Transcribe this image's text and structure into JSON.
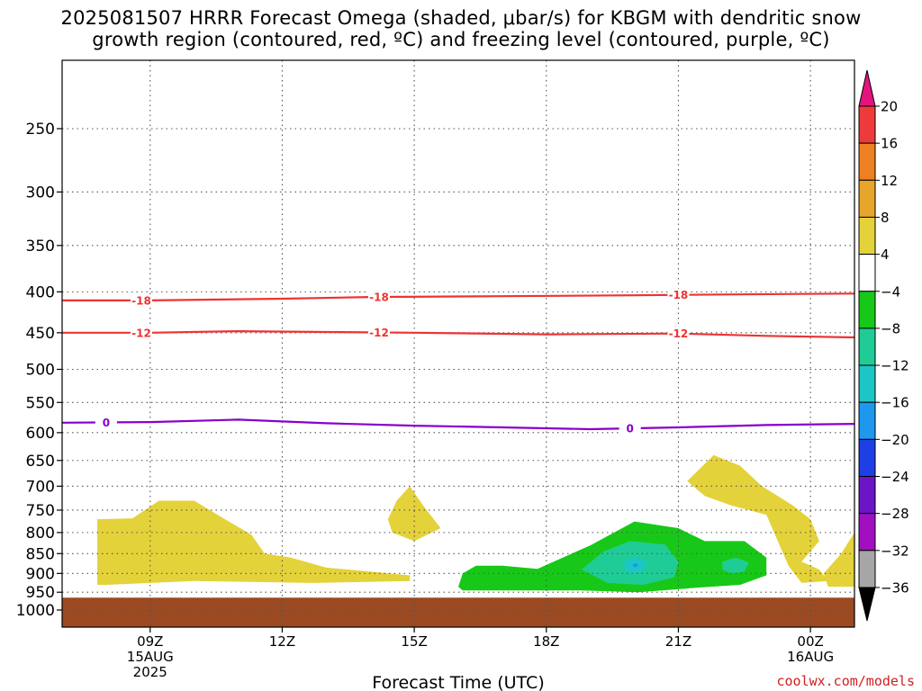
{
  "title": {
    "line1": "2025081507 HRRR Forecast Omega (shaded, μbar/s) for KBGM with dendritic snow",
    "line2": "growth region (contoured, red, ºC) and freezing level (contoured, purple, ºC)"
  },
  "credit": "coolwx.com/models",
  "colors": {
    "dgz_contour": "#ee3333",
    "freezing_level": "#8800cc",
    "ground": "#9b4a22",
    "grid": "#555555"
  },
  "chart_data": {
    "type": "heatmap",
    "xlabel": "Forecast Time (UTC)",
    "x_ticks": [
      {
        "hour": 9,
        "lines": [
          "09Z",
          "15AUG",
          "2025"
        ]
      },
      {
        "hour": 12,
        "lines": [
          "12Z"
        ]
      },
      {
        "hour": 15,
        "lines": [
          "15Z"
        ]
      },
      {
        "hour": 18,
        "lines": [
          "18Z"
        ]
      },
      {
        "hour": 21,
        "lines": [
          "21Z"
        ]
      },
      {
        "hour": 24,
        "lines": [
          "00Z",
          "16AUG"
        ]
      }
    ],
    "xlim_hours": [
      7,
      25
    ],
    "y_ticks": [
      250,
      300,
      350,
      400,
      450,
      500,
      550,
      600,
      650,
      700,
      750,
      800,
      850,
      900,
      950,
      1000
    ],
    "ylim_mb": [
      200,
      1025
    ],
    "y_scale": "log",
    "grid": "dotted",
    "colorbar": {
      "labels": [
        "20",
        "16",
        "12",
        "8",
        "4",
        "−4",
        "−8",
        "−12",
        "−16",
        "−20",
        "−24",
        "−28",
        "−32",
        "−36"
      ],
      "bins": [
        {
          "range": ">20",
          "color": "#e4147e"
        },
        {
          "range": "16–20",
          "color": "#ee3a3a"
        },
        {
          "range": "12–16",
          "color": "#ee7f22"
        },
        {
          "range": "8–12",
          "color": "#e8a52c"
        },
        {
          "range": "4–8",
          "color": "#e4d23a"
        },
        {
          "range": "−4–4",
          "color": "#ffffff"
        },
        {
          "range": "−8–−4",
          "color": "#18c818"
        },
        {
          "range": "−12–−8",
          "color": "#20cc96"
        },
        {
          "range": "−16–−12",
          "color": "#1cc6c6"
        },
        {
          "range": "−20–−16",
          "color": "#1e98ee"
        },
        {
          "range": "−24–−20",
          "color": "#1e3ee6"
        },
        {
          "range": "−28–−24",
          "color": "#6a16c6"
        },
        {
          "range": "−32–−28",
          "color": "#a010c0"
        },
        {
          "range": "−36–−32",
          "color": "#a6a6a6"
        },
        {
          "range": "<−36",
          "color": "#000000"
        }
      ]
    },
    "contours": [
      {
        "name": "-18",
        "kind": "dendritic snow growth",
        "color": "#ee3333",
        "label": "-18",
        "label_hours": [
          8.8,
          14.2,
          21
        ],
        "points": [
          [
            7,
            410
          ],
          [
            9,
            410
          ],
          [
            12,
            408
          ],
          [
            14,
            406
          ],
          [
            17,
            405
          ],
          [
            20,
            404
          ],
          [
            22,
            403
          ],
          [
            25,
            402
          ]
        ]
      },
      {
        "name": "-12",
        "kind": "dendritic snow growth",
        "color": "#ee3333",
        "label": "-12",
        "label_hours": [
          8.8,
          14.2,
          21
        ],
        "points": [
          [
            7,
            450
          ],
          [
            9,
            450
          ],
          [
            11,
            448
          ],
          [
            13,
            449
          ],
          [
            15,
            450
          ],
          [
            18,
            452
          ],
          [
            21,
            451
          ],
          [
            23,
            454
          ],
          [
            25,
            456
          ]
        ]
      },
      {
        "name": "0",
        "kind": "freezing level",
        "color": "#8800cc",
        "label": "0",
        "label_hours": [
          8,
          19.9
        ],
        "points": [
          [
            7,
            583
          ],
          [
            9,
            582
          ],
          [
            11,
            578
          ],
          [
            13,
            584
          ],
          [
            15,
            588
          ],
          [
            17,
            591
          ],
          [
            19,
            594
          ],
          [
            21,
            591
          ],
          [
            23,
            587
          ],
          [
            25,
            585
          ]
        ]
      }
    ],
    "omega_areas": [
      {
        "range": "4–8",
        "color": "#e4d23a",
        "points": [
          [
            7.8,
            930
          ],
          [
            7.8,
            770
          ],
          [
            8.6,
            768
          ],
          [
            9.2,
            730
          ],
          [
            10.0,
            730
          ],
          [
            10.7,
            770
          ],
          [
            11.3,
            805
          ],
          [
            11.6,
            850
          ],
          [
            12.2,
            860
          ],
          [
            13.0,
            885
          ],
          [
            14.0,
            895
          ],
          [
            14.9,
            905
          ],
          [
            14.9,
            920
          ],
          [
            12.7,
            925
          ],
          [
            10.0,
            920
          ],
          [
            8.0,
            930
          ]
        ]
      },
      {
        "range": "4–8",
        "color": "#e4d23a",
        "points": [
          [
            14.6,
            730
          ],
          [
            14.9,
            700
          ],
          [
            15.2,
            740
          ],
          [
            15.6,
            790
          ],
          [
            15.0,
            820
          ],
          [
            14.5,
            800
          ],
          [
            14.4,
            770
          ]
        ]
      },
      {
        "range": "4–8",
        "color": "#e4d23a",
        "points": [
          [
            21.2,
            690
          ],
          [
            21.8,
            640
          ],
          [
            22.4,
            660
          ],
          [
            22.9,
            700
          ],
          [
            23.6,
            740
          ],
          [
            24.0,
            770
          ],
          [
            24.2,
            820
          ],
          [
            23.8,
            870
          ],
          [
            24.2,
            890
          ],
          [
            24.4,
            920
          ],
          [
            23.8,
            925
          ],
          [
            23.5,
            880
          ],
          [
            23.3,
            830
          ],
          [
            23.0,
            760
          ],
          [
            22.2,
            740
          ],
          [
            21.6,
            720
          ]
        ]
      },
      {
        "range": "4–8",
        "color": "#e4d23a",
        "points": [
          [
            24.3,
            900
          ],
          [
            24.7,
            850
          ],
          [
            25.0,
            800
          ],
          [
            25.0,
            935
          ],
          [
            24.4,
            935
          ]
        ]
      },
      {
        "range": "−8–−4",
        "color": "#18c818",
        "points": [
          [
            16.0,
            935
          ],
          [
            16.1,
            900
          ],
          [
            16.4,
            880
          ],
          [
            17.0,
            880
          ],
          [
            17.8,
            888
          ],
          [
            19.0,
            830
          ],
          [
            20.0,
            775
          ],
          [
            21.0,
            790
          ],
          [
            21.6,
            820
          ],
          [
            22.5,
            820
          ],
          [
            23.0,
            860
          ],
          [
            23.0,
            905
          ],
          [
            22.4,
            930
          ],
          [
            21.4,
            938
          ],
          [
            20.1,
            950
          ],
          [
            18.8,
            945
          ],
          [
            17.0,
            945
          ],
          [
            16.1,
            945
          ]
        ]
      },
      {
        "range": "−12–−8",
        "color": "#20cc96",
        "points": [
          [
            18.8,
            890
          ],
          [
            19.3,
            845
          ],
          [
            19.9,
            820
          ],
          [
            20.7,
            828
          ],
          [
            21.0,
            870
          ],
          [
            20.9,
            910
          ],
          [
            20.2,
            930
          ],
          [
            19.4,
            925
          ]
        ]
      },
      {
        "range": "−12–−8",
        "color": "#20cc96",
        "points": [
          [
            22.0,
            870
          ],
          [
            22.3,
            860
          ],
          [
            22.6,
            872
          ],
          [
            22.5,
            895
          ],
          [
            22.2,
            900
          ],
          [
            22.0,
            890
          ]
        ]
      },
      {
        "range": "−16–−12",
        "color": "#1cc6c6",
        "points": [
          [
            19.7,
            875
          ],
          [
            20.0,
            858
          ],
          [
            20.3,
            870
          ],
          [
            20.2,
            895
          ],
          [
            19.9,
            900
          ]
        ]
      },
      {
        "range": "−20–−16",
        "color": "#1e98ee",
        "points": [
          [
            19.95,
            878
          ],
          [
            20.05,
            873
          ],
          [
            20.1,
            880
          ],
          [
            20.0,
            885
          ]
        ]
      }
    ],
    "ground": {
      "pressure_mb": 965
    }
  }
}
